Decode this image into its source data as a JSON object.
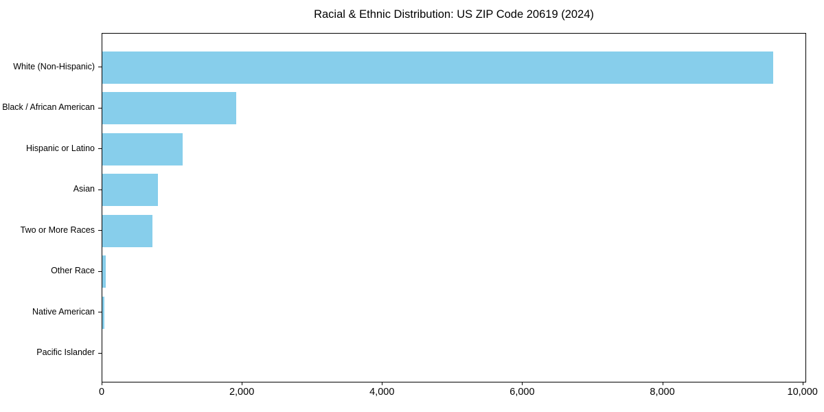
{
  "chart_data": {
    "type": "bar",
    "orientation": "horizontal",
    "title": "Racial & Ethnic Distribution: US ZIP Code 20619 (2024)",
    "categories": [
      "White (Non-Hispanic)",
      "Black / African American",
      "Hispanic or Latino",
      "Asian",
      "Two or More Races",
      "Other Race",
      "Native American",
      "Pacific Islander"
    ],
    "values": [
      9570,
      1910,
      1145,
      790,
      720,
      45,
      30,
      0
    ],
    "xlabel": "",
    "ylabel": "",
    "xlim": [
      0,
      10050
    ],
    "x_ticks": [
      0,
      2000,
      4000,
      6000,
      8000,
      10000
    ],
    "x_tick_labels": [
      "0",
      "2,000",
      "4,000",
      "6,000",
      "8,000",
      "10,000"
    ],
    "grid": false,
    "legend": false,
    "bar_color": "#87CEEB",
    "spine_color": "#000000",
    "text_color": "#000000",
    "background_color": "#FFFFFF"
  }
}
